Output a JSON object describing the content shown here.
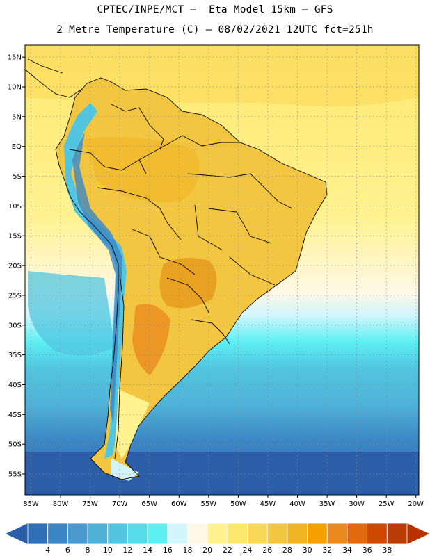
{
  "title": {
    "line1": "CPTEC/INPE/MCT –  Eta Model 15km – GFS",
    "line2": "2 Metre Temperature (C) – 08/02/2021 12UTC fct=251h"
  },
  "map": {
    "lon_range": [
      -86,
      -19.5
    ],
    "lat_range": [
      -58.5,
      17
    ],
    "lat_ticks": [
      {
        "value": 15,
        "label": "15N"
      },
      {
        "value": 10,
        "label": "10N"
      },
      {
        "value": 5,
        "label": "5N"
      },
      {
        "value": 0,
        "label": "EQ"
      },
      {
        "value": -5,
        "label": "5S"
      },
      {
        "value": -10,
        "label": "10S"
      },
      {
        "value": -15,
        "label": "15S"
      },
      {
        "value": -20,
        "label": "20S"
      },
      {
        "value": -25,
        "label": "25S"
      },
      {
        "value": -30,
        "label": "30S"
      },
      {
        "value": -35,
        "label": "35S"
      },
      {
        "value": -40,
        "label": "40S"
      },
      {
        "value": -45,
        "label": "45S"
      },
      {
        "value": -50,
        "label": "50S"
      },
      {
        "value": -55,
        "label": "55S"
      }
    ],
    "lon_ticks": [
      {
        "value": -85,
        "label": "85W"
      },
      {
        "value": -80,
        "label": "80W"
      },
      {
        "value": -75,
        "label": "75W"
      },
      {
        "value": -70,
        "label": "70W"
      },
      {
        "value": -65,
        "label": "65W"
      },
      {
        "value": -60,
        "label": "60W"
      },
      {
        "value": -55,
        "label": "55W"
      },
      {
        "value": -50,
        "label": "50W"
      },
      {
        "value": -45,
        "label": "45W"
      },
      {
        "value": -40,
        "label": "40W"
      },
      {
        "value": -35,
        "label": "35W"
      },
      {
        "value": -30,
        "label": "30W"
      },
      {
        "value": -25,
        "label": "25W"
      },
      {
        "value": -20,
        "label": "20W"
      }
    ]
  },
  "colorbar": {
    "labels": [
      "4",
      "6",
      "8",
      "10",
      "12",
      "14",
      "16",
      "18",
      "20",
      "22",
      "24",
      "26",
      "28",
      "30",
      "32",
      "34",
      "36",
      "38"
    ],
    "colors": [
      "#2f6fb5",
      "#3c86c4",
      "#4a9acf",
      "#4fb2d8",
      "#52c5e0",
      "#56dce9",
      "#5cf0f4",
      "#d2f6fc",
      "#fff8e6",
      "#fff28f",
      "#fde86f",
      "#f9d858",
      "#f2c640",
      "#f0b422",
      "#f4a100",
      "#ea8a1e",
      "#e26a0e",
      "#cc4a00",
      "#b83c06"
    ],
    "low_color": "#2c5ea8",
    "high_color": "#b83200"
  }
}
